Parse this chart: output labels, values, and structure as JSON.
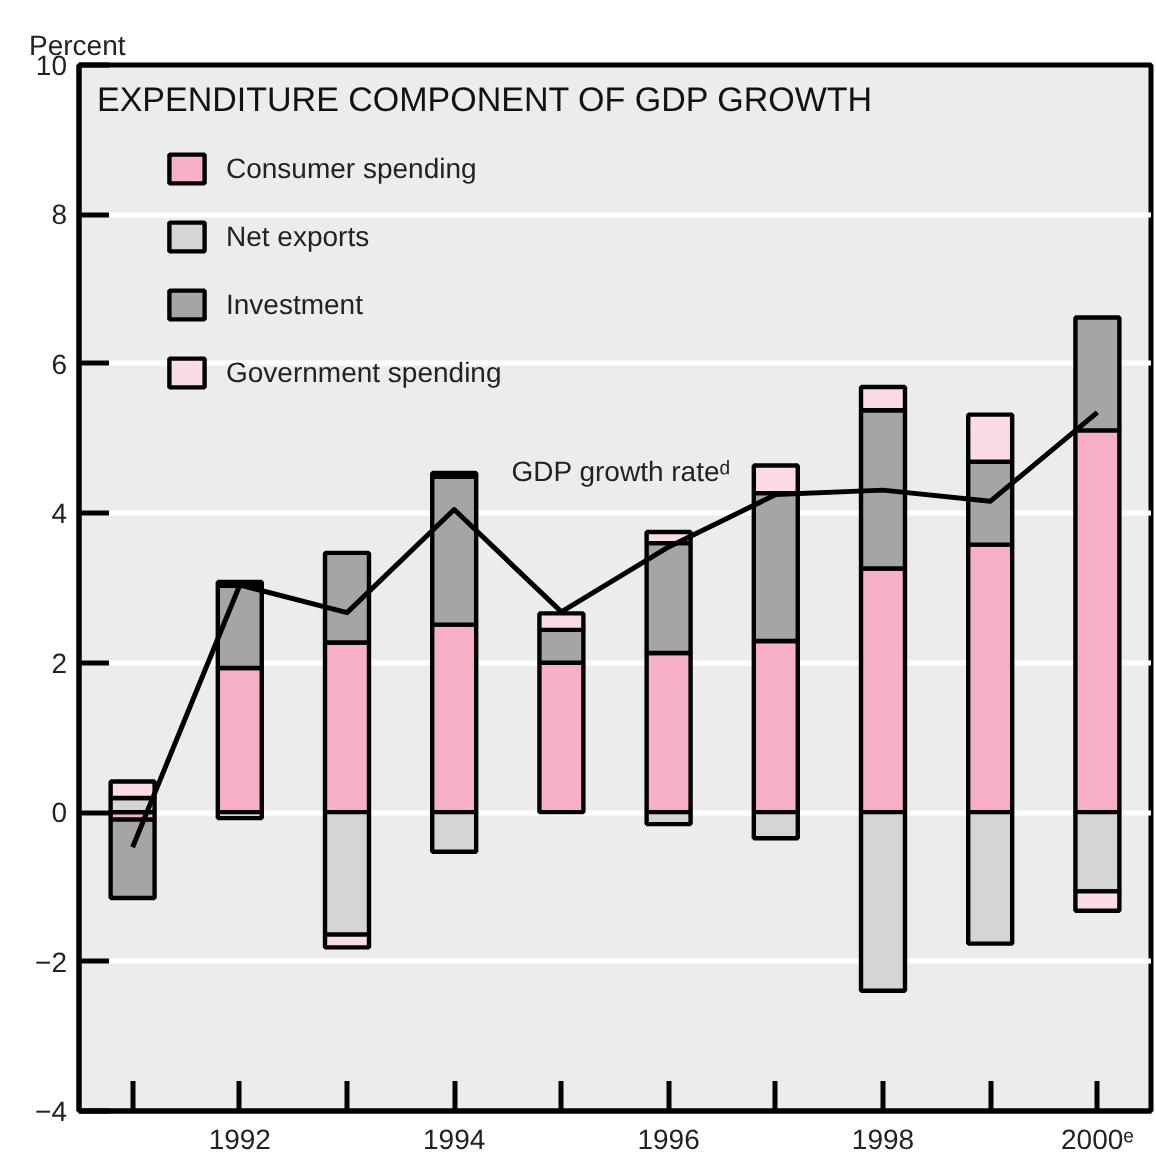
{
  "chart_data": {
    "type": "bar",
    "title": "EXPENDITURE COMPONENT OF GDP GROWTH",
    "ylabel": "Percent",
    "x": [
      1991,
      1992,
      1993,
      1994,
      1995,
      1996,
      1997,
      1998,
      1999,
      2000
    ],
    "xlim": [
      1990.5,
      2000.5
    ],
    "xticks": [
      {
        "value": 1991,
        "label": null
      },
      1992,
      {
        "value": 1993,
        "label": null
      },
      1994,
      {
        "value": 1995,
        "label": null
      },
      1996,
      {
        "value": 1997,
        "label": null
      },
      1998,
      {
        "value": 1999,
        "label": null
      },
      {
        "value": 2000,
        "label": "2000ᵉ"
      }
    ],
    "ylim": [
      -4,
      10
    ],
    "yticks": [
      -4,
      -2,
      0,
      2,
      4,
      6,
      8,
      10
    ],
    "stacked": true,
    "grid": "y",
    "legend": "top left",
    "series": [
      {
        "name": "Consumer spending",
        "color": "#f7afc8",
        "values": [
          -0.1,
          1.93,
          2.27,
          2.51,
          2.0,
          2.13,
          2.29,
          3.26,
          3.58,
          5.11
        ]
      },
      {
        "name": "Net exports",
        "color": "#d5d5d5",
        "values": [
          0.19,
          -0.08,
          -1.64,
          -0.53,
          null,
          -0.16,
          -0.35,
          -2.39,
          -1.76,
          -1.06
        ]
      },
      {
        "name": "Investment",
        "color": "#a5a5a5",
        "values": [
          -1.05,
          1.1,
          1.2,
          1.98,
          0.44,
          1.47,
          1.98,
          2.12,
          1.11,
          1.51
        ]
      },
      {
        "name": "Government spending",
        "color": "#fbdce5",
        "values": [
          0.22,
          0.05,
          -0.17,
          0.05,
          0.22,
          0.15,
          0.37,
          0.31,
          0.63,
          -0.26
        ]
      },
      {
        "name": "GDP growth rateᵈ",
        "type": "line",
        "color": "#000000",
        "values": [
          -0.47,
          3.04,
          2.67,
          4.05,
          2.68,
          3.55,
          4.25,
          4.31,
          4.16,
          5.35
        ]
      }
    ]
  }
}
